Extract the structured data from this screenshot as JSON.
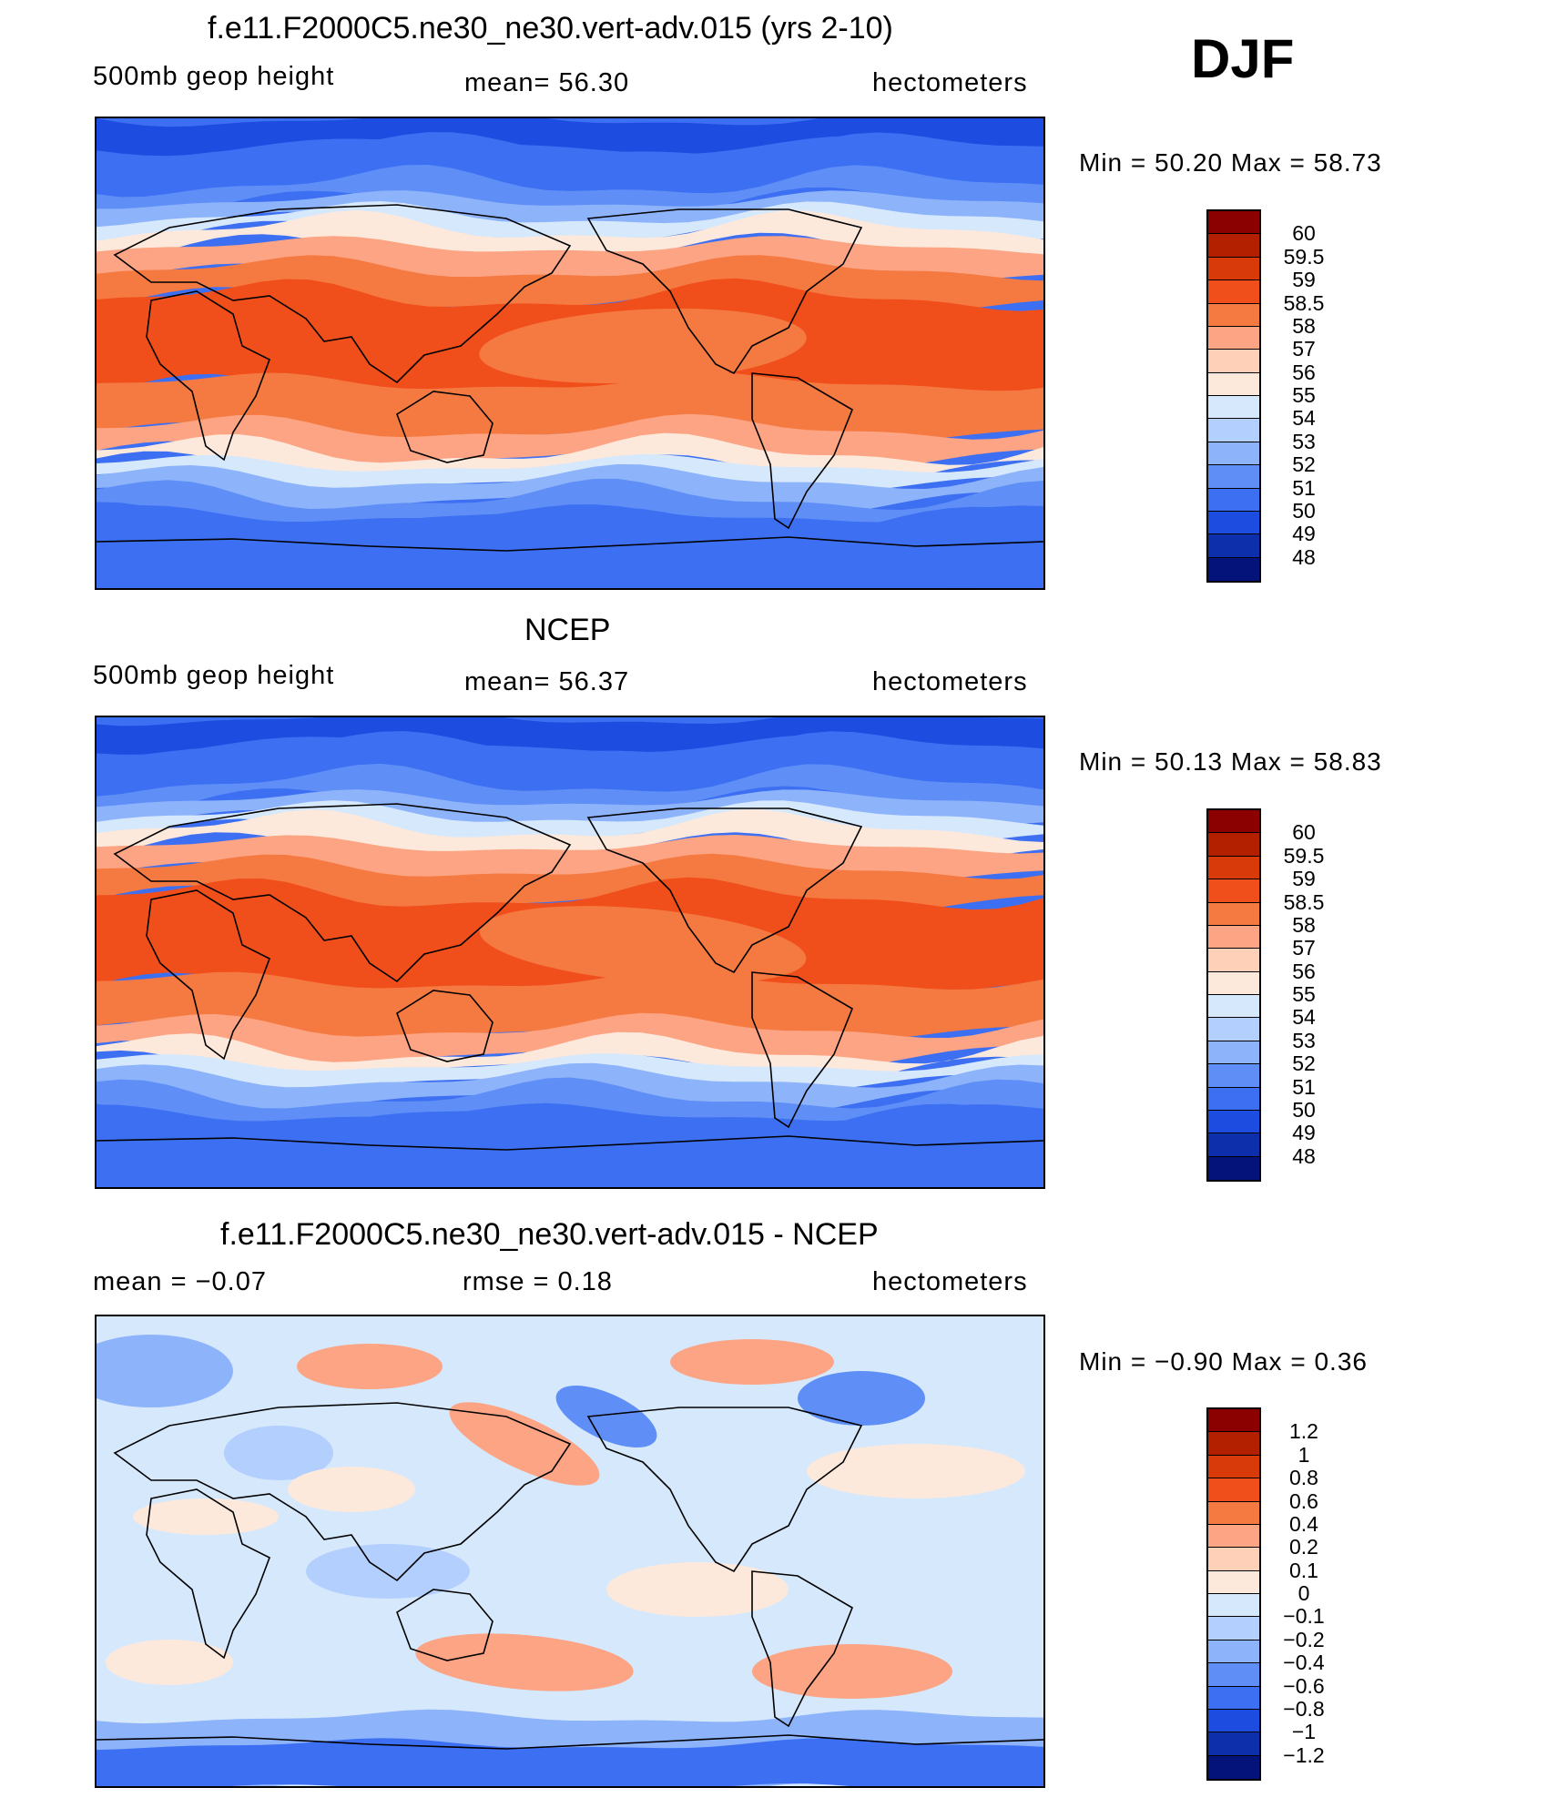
{
  "season": "DJF",
  "panels": [
    {
      "title": "f.e11.F2000C5.ne30_ne30.vert-adv.015 (yrs 2-10)",
      "left_label": "500mb  geop  height",
      "mid_label": "mean=   56.30",
      "units": "hectometers",
      "min_max": "Min  =    50.20  Max  =    58.73",
      "type": "field",
      "colorbar_labels": [
        "60",
        "59.5",
        "59",
        "58.5",
        "58",
        "57",
        "56",
        "55",
        "54",
        "53",
        "52",
        "51",
        "50",
        "49",
        "48"
      ]
    },
    {
      "title": "NCEP",
      "left_label": "500mb  geop  height",
      "mid_label": "mean=   56.37",
      "units": "hectometers",
      "min_max": "Min  =    50.13  Max  =    58.83",
      "type": "field",
      "colorbar_labels": [
        "60",
        "59.5",
        "59",
        "58.5",
        "58",
        "57",
        "56",
        "55",
        "54",
        "53",
        "52",
        "51",
        "50",
        "49",
        "48"
      ]
    },
    {
      "title": "f.e11.F2000C5.ne30_ne30.vert-adv.015 - NCEP",
      "left_label": "mean  =    −0.07",
      "mid_label": "rmse  =     0.18",
      "units": "hectometers",
      "min_max": "Min  =   −0.90  Max  =     0.36",
      "type": "diff",
      "colorbar_labels": [
        "1.2",
        "1",
        "0.8",
        "0.6",
        "0.4",
        "0.2",
        "0.1",
        "0",
        "−0.1",
        "−0.2",
        "−0.4",
        "−0.6",
        "−0.8",
        "−1",
        "−1.2"
      ]
    }
  ],
  "colors": {
    "scale": [
      "#8b0000",
      "#b22000",
      "#d93a0a",
      "#f04f1c",
      "#f57a42",
      "#fca483",
      "#fdd0b7",
      "#fde9dc",
      "#d6e8fc",
      "#b2cffd",
      "#8db3fb",
      "#5f8ff6",
      "#3d6ff2",
      "#1c4ce0",
      "#0e2fab",
      "#04137a"
    ]
  }
}
